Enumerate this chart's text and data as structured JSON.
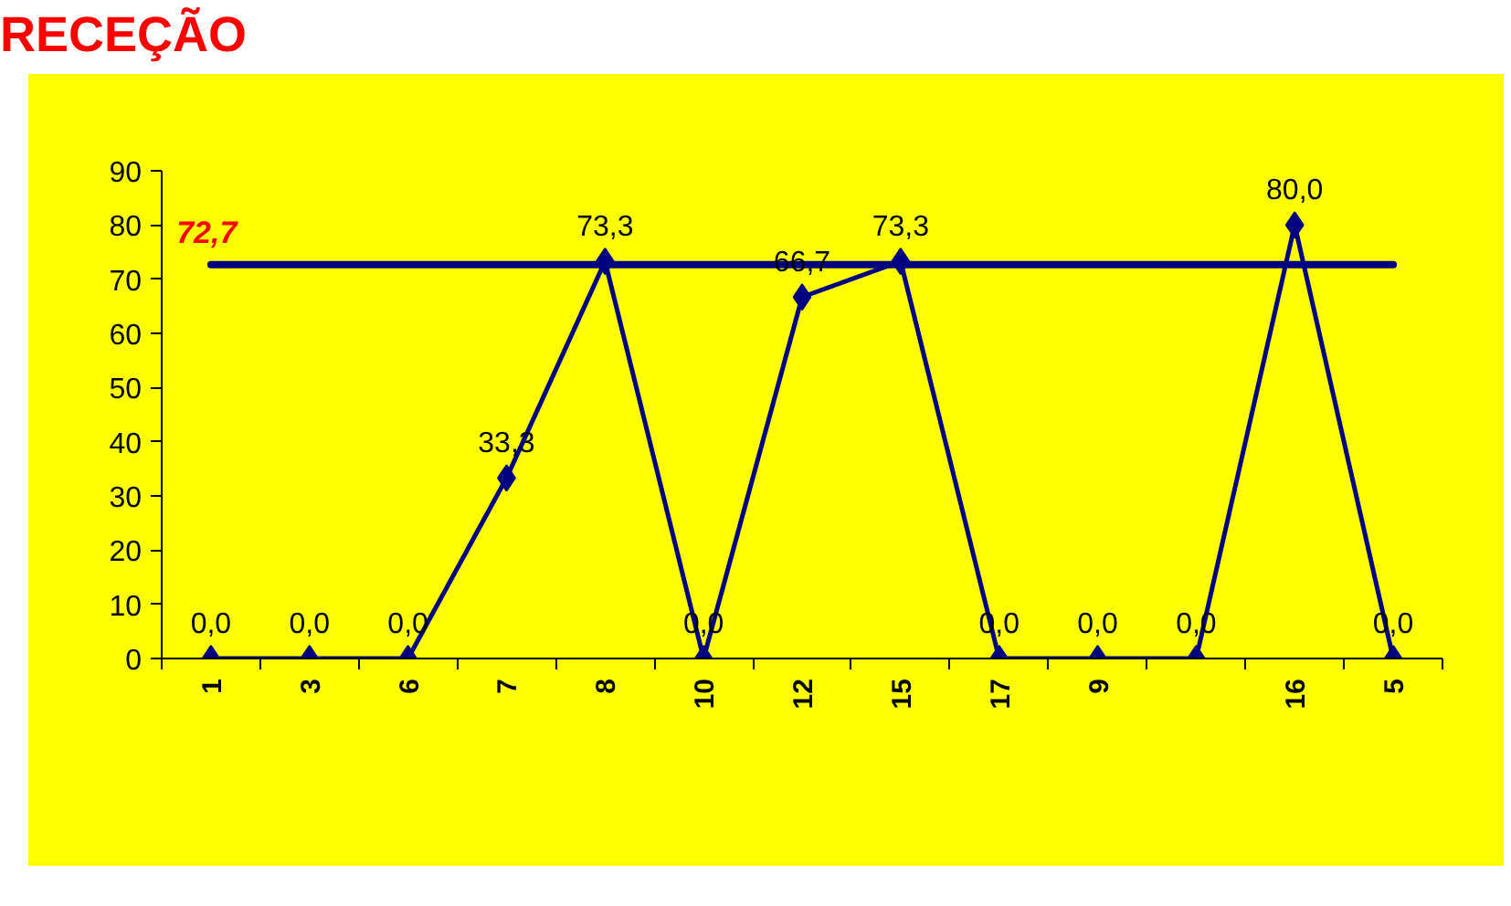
{
  "chart_data": {
    "type": "line",
    "title": "RECEÇÃO",
    "categories": [
      "1",
      "3",
      "6",
      "7",
      "8",
      "10",
      "12",
      "15",
      "17",
      "9",
      null,
      "16",
      "5"
    ],
    "series": [
      {
        "color": "#000080",
        "values": [
          0,
          0,
          0,
          33.3,
          73.3,
          0,
          66.7,
          73.3,
          0,
          0,
          0,
          80,
          0
        ],
        "value_labels": [
          "0,0",
          "0,0",
          "0,0",
          "33,3",
          "73,3",
          "0,0",
          "66,7",
          "73,3",
          "0,0",
          "0,0",
          "0,0",
          "80,0",
          "0,0"
        ]
      }
    ],
    "ylim": [
      0,
      90
    ],
    "yticks": [
      0,
      10,
      20,
      30,
      40,
      50,
      60,
      70,
      80,
      90
    ],
    "ref_lines": [
      {
        "axis": "y",
        "value": 72.7,
        "label": "72,7",
        "color": "#000080"
      }
    ],
    "marker": "diamond",
    "grid": false
  }
}
